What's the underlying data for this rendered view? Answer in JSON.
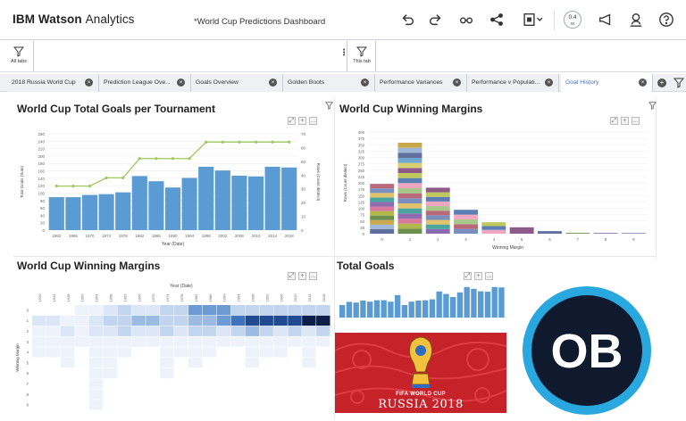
{
  "header": {
    "brand_bold": "IBM Watson",
    "brand_light": "Analytics",
    "document_title": "*World Cup Predictions Dashboard",
    "zoom_value": "0.4",
    "zoom_unit": "M"
  },
  "filters": {
    "all_tabs_label": "All tabs",
    "this_tab_label": "This tab"
  },
  "tabs": [
    {
      "label": "2018 Russia World Cup"
    },
    {
      "label": "Prediction League Ove..."
    },
    {
      "label": "Goals Overview"
    },
    {
      "label": "Golden Boots"
    },
    {
      "label": "Performance Variances"
    },
    {
      "label": "Performance v Populati..."
    },
    {
      "label": "Goal History"
    }
  ],
  "panels": {
    "goals_title": "World Cup Total Goals per Tournament",
    "margins_bar_title": "World Cup Winning Margins",
    "margins_heat_title": "World Cup Winning Margins",
    "total_goals_title": "Total Goals",
    "poster_line1": "FIFA WORLD CUP",
    "poster_line2": "RUSSIA 2018",
    "logo_letters": "OB"
  },
  "chart_data": [
    {
      "type": "bar",
      "title": "World Cup Total Goals per Tournament",
      "xlabel": "Year (Date)",
      "ylabel": "Total Goals (Sum)",
      "y2label": "Rows (Count distinct)",
      "categories": [
        "1962",
        "1966",
        "1970",
        "1974",
        "1978",
        "1982",
        "1986",
        "1990",
        "1994",
        "1998",
        "2002",
        "2006",
        "2010",
        "2014",
        "2018"
      ],
      "series": [
        {
          "name": "Total Goals (Sum)",
          "values": [
            89,
            89,
            95,
            97,
            102,
            146,
            132,
            115,
            141,
            171,
            161,
            147,
            145,
            171,
            169
          ]
        },
        {
          "name": "Rows (Count distinct)",
          "values": [
            32,
            32,
            32,
            38,
            38,
            52,
            52,
            52,
            52,
            64,
            64,
            64,
            64,
            64,
            64
          ]
        }
      ],
      "ylim": [
        0,
        260
      ],
      "y2lim": [
        0,
        70
      ],
      "yticks": [
        "0",
        "20",
        "40",
        "60",
        "80",
        "100",
        "120",
        "140",
        "160",
        "180",
        "200",
        "220",
        "240",
        "260"
      ],
      "y2ticks": [
        "0",
        "10",
        "20",
        "30",
        "40",
        "50",
        "60",
        "70"
      ]
    },
    {
      "type": "bar",
      "title": "World Cup Winning Margins",
      "xlabel": "Winning Margin",
      "ylabel": "Rows (Count distinct)",
      "categories": [
        "0",
        "1",
        "2",
        "3",
        "4",
        "5",
        "6",
        "7",
        "8",
        "9"
      ],
      "values": [
        196,
        358,
        181,
        94,
        45,
        25,
        10,
        3,
        3,
        3
      ],
      "ylim": [
        0,
        400
      ],
      "yticks": [
        "0",
        "25",
        "50",
        "75",
        "100",
        "125",
        "150",
        "175",
        "200",
        "225",
        "250",
        "275",
        "300",
        "325",
        "350",
        "375",
        "400"
      ]
    },
    {
      "type": "heatmap",
      "title": "World Cup Winning Margins",
      "xlabel": "Year (Date)",
      "ylabel": "Winning Margin",
      "x": [
        "1930",
        "1934",
        "1938",
        "1950",
        "1954",
        "1958",
        "1962",
        "1966",
        "1970",
        "1974",
        "1978",
        "1982",
        "1986",
        "1990",
        "1994",
        "1998",
        "2002",
        "2006",
        "2010",
        "2014",
        "2018"
      ],
      "y": [
        "0",
        "1",
        "2",
        "3",
        "4",
        "5",
        "6",
        "7",
        "8",
        "9"
      ],
      "values": [
        [
          0,
          0,
          0,
          1,
          1,
          2,
          3,
          2,
          2,
          3,
          3,
          5,
          5,
          5,
          3,
          3,
          3,
          3,
          3,
          3,
          3
        ],
        [
          2,
          2,
          1,
          1,
          2,
          3,
          3,
          4,
          4,
          3,
          3,
          4,
          4,
          5,
          6,
          7,
          7,
          7,
          7,
          8,
          8
        ],
        [
          1,
          1,
          2,
          1,
          2,
          2,
          3,
          2,
          2,
          3,
          2,
          3,
          3,
          2,
          3,
          4,
          3,
          2,
          3,
          2,
          3
        ],
        [
          1,
          1,
          1,
          1,
          1,
          1,
          1,
          1,
          1,
          1,
          1,
          1,
          1,
          1,
          1,
          1,
          1,
          1,
          1,
          1,
          1
        ],
        [
          1,
          1,
          1,
          0,
          1,
          1,
          1,
          0,
          0,
          1,
          1,
          1,
          1,
          0,
          0,
          1,
          1,
          1,
          0,
          1,
          0
        ],
        [
          0,
          0,
          1,
          0,
          1,
          1,
          0,
          0,
          0,
          1,
          0,
          1,
          0,
          0,
          0,
          1,
          0,
          0,
          0,
          1,
          0
        ],
        [
          0,
          0,
          0,
          0,
          1,
          1,
          0,
          0,
          0,
          1,
          0,
          0,
          0,
          0,
          0,
          0,
          0,
          0,
          0,
          0,
          0
        ],
        [
          0,
          0,
          0,
          0,
          1,
          0,
          0,
          0,
          0,
          0,
          0,
          0,
          0,
          0,
          0,
          0,
          0,
          0,
          0,
          0,
          0
        ],
        [
          0,
          0,
          0,
          0,
          1,
          0,
          0,
          0,
          0,
          0,
          0,
          0,
          0,
          0,
          0,
          0,
          0,
          0,
          0,
          0,
          0
        ],
        [
          0,
          0,
          0,
          0,
          1,
          0,
          0,
          0,
          0,
          0,
          0,
          0,
          0,
          0,
          0,
          0,
          0,
          0,
          0,
          0,
          0
        ]
      ]
    },
    {
      "type": "bar",
      "title": "Total Goals",
      "values": [
        70,
        88,
        84,
        95,
        89,
        97,
        97,
        89,
        126,
        70,
        89,
        95,
        97,
        102,
        146,
        132,
        115,
        141,
        171,
        161,
        147,
        145,
        171,
        169
      ],
      "ylim": [
        0,
        180
      ]
    }
  ],
  "colors": {
    "bar_blue": "#5a9bd4",
    "line_green": "#9dc85a",
    "accent_blue": "#3b6fc7",
    "heat_dark": "#0c1e4a",
    "logo_ring": "#29a8e0",
    "poster_red": "#c6222a"
  }
}
